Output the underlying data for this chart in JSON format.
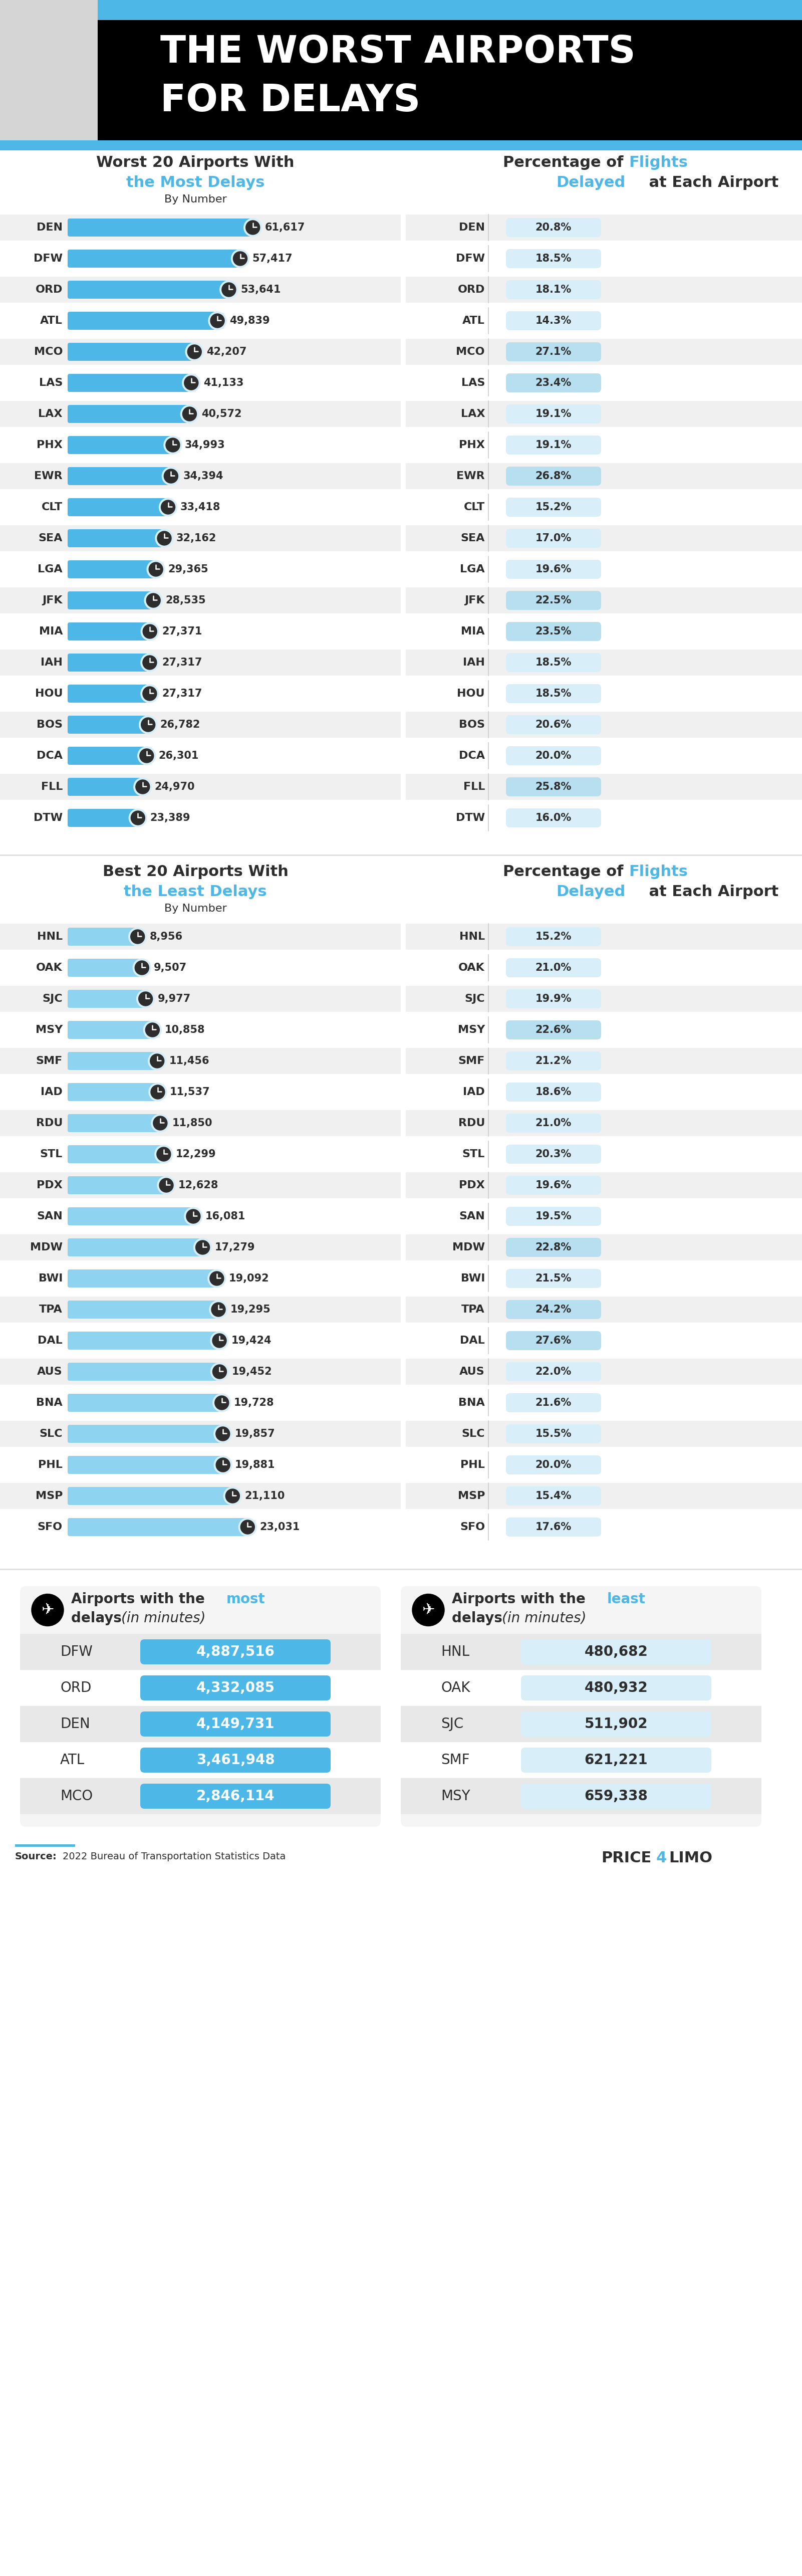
{
  "title_line1": "THE WORST AIRPORTS",
  "title_line2": "FOR DELAYS",
  "blue_main": "#4db8e8",
  "text_dark": "#2d2d2d",
  "worst_airports": [
    "DEN",
    "DFW",
    "ORD",
    "ATL",
    "MCO",
    "LAS",
    "LAX",
    "PHX",
    "EWR",
    "CLT",
    "SEA",
    "LGA",
    "JFK",
    "MIA",
    "IAH",
    "HOU",
    "BOS",
    "DCA",
    "FLL",
    "DTW"
  ],
  "worst_values": [
    61617,
    57417,
    53641,
    49839,
    42207,
    41133,
    40572,
    34993,
    34394,
    33418,
    32162,
    29365,
    28535,
    27371,
    27317,
    27317,
    26782,
    26301,
    24970,
    23389
  ],
  "worst_pct": [
    "20.8%",
    "18.5%",
    "18.1%",
    "14.3%",
    "27.1%",
    "23.4%",
    "19.1%",
    "19.1%",
    "26.8%",
    "15.2%",
    "17.0%",
    "19.6%",
    "22.5%",
    "23.5%",
    "18.5%",
    "18.5%",
    "20.6%",
    "20.0%",
    "25.8%",
    "16.0%"
  ],
  "best_airports": [
    "HNL",
    "OAK",
    "SJC",
    "MSY",
    "SMF",
    "IAD",
    "RDU",
    "STL",
    "PDX",
    "SAN",
    "MDW",
    "BWI",
    "TPA",
    "DAL",
    "AUS",
    "BNA",
    "SLC",
    "PHL",
    "MSP",
    "SFO"
  ],
  "best_values": [
    8956,
    9507,
    9977,
    10858,
    11456,
    11537,
    11850,
    12299,
    12628,
    16081,
    17279,
    19092,
    19295,
    19424,
    19452,
    19728,
    19857,
    19881,
    21110,
    23031
  ],
  "best_pct": [
    "15.2%",
    "21.0%",
    "19.9%",
    "22.6%",
    "21.2%",
    "18.6%",
    "21.0%",
    "20.3%",
    "19.6%",
    "19.5%",
    "22.8%",
    "21.5%",
    "24.2%",
    "27.6%",
    "22.0%",
    "21.6%",
    "15.5%",
    "20.0%",
    "15.4%",
    "17.6%"
  ],
  "most_delays_airports": [
    "DFW",
    "ORD",
    "DEN",
    "ATL",
    "MCO"
  ],
  "most_delays_values": [
    "4,887,516",
    "4,332,085",
    "4,149,731",
    "3,461,948",
    "2,846,114"
  ],
  "least_delays_airports": [
    "HNL",
    "OAK",
    "SJC",
    "SMF",
    "MSY"
  ],
  "least_delays_values": [
    "480,682",
    "480,932",
    "511,902",
    "621,221",
    "659,338"
  ],
  "source_text": "Source: 2022 Bureau of Transportation Statistics Data"
}
